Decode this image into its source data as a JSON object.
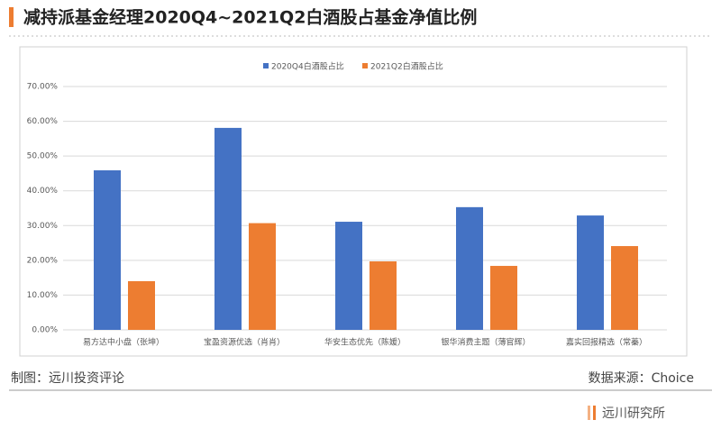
{
  "header": {
    "title": "减持派基金经理2020Q4~2021Q2白酒股占基金净值比例"
  },
  "chart_data": {
    "type": "bar",
    "categories": [
      "易方达中小盘（张坤）",
      "宝盈资源优选（肖肖）",
      "华安生态优先（陈媛）",
      "银华消费主题（薄官辉）",
      "嘉实回报精选（常蓁）"
    ],
    "series": [
      {
        "name": "2020Q4白酒股占比",
        "color": "#4472c4",
        "values": [
          45.9,
          58.1,
          31.1,
          35.3,
          32.9
        ]
      },
      {
        "name": "2021Q2白酒股占比",
        "color": "#ed7d31",
        "values": [
          14.0,
          30.7,
          19.7,
          18.4,
          24.1
        ]
      }
    ],
    "ylim": [
      0,
      70
    ],
    "yticks": [
      {
        "value": 0,
        "label": "0.00%"
      },
      {
        "value": 10,
        "label": "10.00%"
      },
      {
        "value": 20,
        "label": "20.00%"
      },
      {
        "value": 30,
        "label": "30.00%"
      },
      {
        "value": 40,
        "label": "40.00%"
      },
      {
        "value": 50,
        "label": "50.00%"
      },
      {
        "value": 60,
        "label": "60.00%"
      },
      {
        "value": 70,
        "label": "70.00%"
      }
    ],
    "grid": true,
    "legend": "top"
  },
  "footer": {
    "credit": "制图：远川投资评论",
    "source": "数据来源：Choice",
    "brand": "远川研究所"
  }
}
